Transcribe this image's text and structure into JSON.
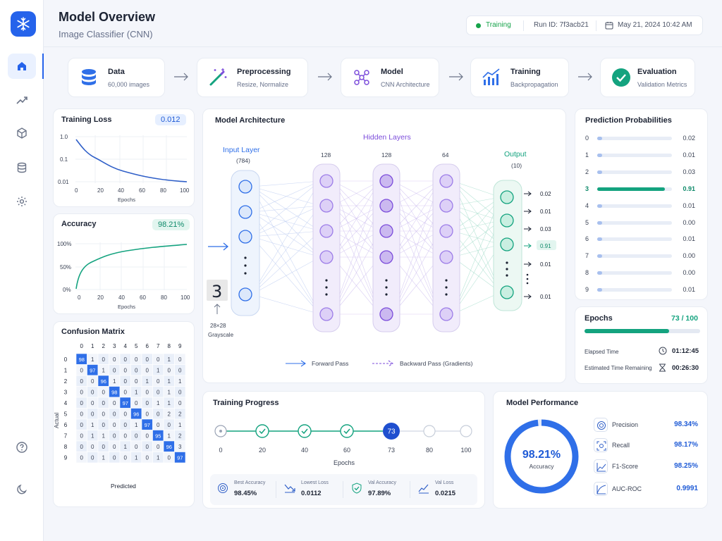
{
  "header": {
    "title": "Model Overview",
    "subtitle": "Image Classifier (CNN)"
  },
  "status": {
    "state": "Training",
    "run_label": "Run ID: 7f3acb21",
    "datetime": "May 21, 2024 10:42 AM",
    "state_color": "#16a34a"
  },
  "sidebar": {
    "items": [
      {
        "name": "home",
        "icon": "home-icon",
        "active": true
      },
      {
        "name": "trends",
        "icon": "trend-icon",
        "active": false
      },
      {
        "name": "models",
        "icon": "cube-icon",
        "active": false
      },
      {
        "name": "datasets",
        "icon": "database-icon",
        "active": false
      },
      {
        "name": "settings",
        "icon": "gear-icon",
        "active": false
      }
    ],
    "help": "help-icon",
    "theme": "moon-icon"
  },
  "pipeline": [
    {
      "title": "Data",
      "subtitle": "60,000 images",
      "icon": "database-icon"
    },
    {
      "title": "Preprocessing",
      "subtitle": "Resize, Normalize",
      "icon": "wand-icon"
    },
    {
      "title": "Model",
      "subtitle": "CNN Architecture",
      "icon": "network-icon"
    },
    {
      "title": "Training",
      "subtitle": "Backpropagation",
      "icon": "bar-trend-icon"
    },
    {
      "title": "Evaluation",
      "subtitle": "Validation Metrics",
      "icon": "check-circle-icon"
    }
  ],
  "training_loss": {
    "title": "Training Loss",
    "value": "0.012",
    "ytick": [
      "1.0",
      "0.1",
      "0.01"
    ],
    "xtick": [
      "0",
      "20",
      "40",
      "60",
      "80",
      "100"
    ],
    "xlabel": "Epochs"
  },
  "accuracy": {
    "title": "Accuracy",
    "value": "98.21%",
    "ytick": [
      "100%",
      "50%",
      "0%"
    ],
    "xtick": [
      "0",
      "20",
      "40",
      "60",
      "80",
      "100"
    ],
    "xlabel": "Epochs"
  },
  "confusion": {
    "title": "Confusion Matrix",
    "ylabel": "Actual",
    "xlabel": "Predicted",
    "labels": [
      "0",
      "1",
      "2",
      "3",
      "4",
      "5",
      "6",
      "7",
      "8",
      "9"
    ],
    "matrix": [
      [
        "98",
        "1",
        "0",
        "0",
        "0",
        "0",
        "0",
        "0",
        "1",
        "0"
      ],
      [
        "0",
        "97",
        "1",
        "0",
        "0",
        "0",
        "0",
        "1",
        "0",
        "0"
      ],
      [
        "0",
        "0",
        "96",
        "1",
        "0",
        "0",
        "1",
        "0",
        "1",
        "1"
      ],
      [
        "0",
        "0",
        "0",
        "98",
        "0",
        "1",
        "0",
        "0",
        "1",
        "0"
      ],
      [
        "0",
        "0",
        "0",
        "0",
        "97",
        "0",
        "0",
        "1",
        "1",
        "0"
      ],
      [
        "0",
        "0",
        "0",
        "0",
        "0",
        "96",
        "0",
        "0",
        "2",
        "2"
      ],
      [
        "0",
        "1",
        "0",
        "0",
        "0",
        "1",
        "97",
        "0",
        "0",
        "1"
      ],
      [
        "0",
        "1",
        "1",
        "0",
        "0",
        "0",
        "0",
        "95",
        "1",
        "2"
      ],
      [
        "0",
        "0",
        "0",
        "0",
        "1",
        "0",
        "0",
        "0",
        "96",
        "3"
      ],
      [
        "0",
        "0",
        "1",
        "0",
        "0",
        "1",
        "0",
        "1",
        "0",
        "97"
      ]
    ]
  },
  "architecture": {
    "title": "Model Architecture",
    "input_title": "Input Layer",
    "input_count": "(784)",
    "hidden_title": "Hidden Layers",
    "hidden_counts": [
      "128",
      "128",
      "64"
    ],
    "output_title": "Output",
    "output_count": "(10)",
    "digit": "3",
    "image_caption_1": "28×28",
    "image_caption_2": "Grayscale",
    "outputs": [
      "0.02",
      "0.01",
      "0.03",
      "0.91",
      "0.01",
      "0.01"
    ],
    "legend_forward": "Forward Pass",
    "legend_backward": "Backward Pass (Gradients)"
  },
  "prediction": {
    "title": "Prediction Probabilities",
    "rows": [
      {
        "label": "0",
        "value": "0.02",
        "p": 0.02
      },
      {
        "label": "1",
        "value": "0.01",
        "p": 0.01
      },
      {
        "label": "2",
        "value": "0.03",
        "p": 0.03
      },
      {
        "label": "3",
        "value": "0.91",
        "p": 0.91
      },
      {
        "label": "4",
        "value": "0.01",
        "p": 0.01
      },
      {
        "label": "5",
        "value": "0.00",
        "p": 0.0
      },
      {
        "label": "6",
        "value": "0.01",
        "p": 0.01
      },
      {
        "label": "7",
        "value": "0.00",
        "p": 0.0
      },
      {
        "label": "8",
        "value": "0.00",
        "p": 0.0
      },
      {
        "label": "9",
        "value": "0.01",
        "p": 0.01
      }
    ],
    "highlight_color": "#14a37f"
  },
  "epochs": {
    "title": "Epochs",
    "value": "73 / 100",
    "progress": 0.73,
    "elapsed_label": "Elapsed Time",
    "elapsed": "01:12:45",
    "remaining_label": "Estimated Time Remaining",
    "remaining": "00:26:30"
  },
  "progress": {
    "title": "Training Progress",
    "steps": [
      "0",
      "20",
      "40",
      "60",
      "73",
      "80",
      "100"
    ],
    "current": "73",
    "xlabel": "Epochs",
    "stats": [
      {
        "label": "Best Accuracy",
        "value": "98.45%",
        "icon": "target-icon"
      },
      {
        "label": "Lowest Loss",
        "value": "0.0112",
        "icon": "trend-down-icon"
      },
      {
        "label": "Val Accuracy",
        "value": "97.89%",
        "icon": "shield-check-icon"
      },
      {
        "label": "Val Loss",
        "value": "0.0215",
        "icon": "chart-line-icon"
      }
    ]
  },
  "performance": {
    "title": "Model Performance",
    "donut_value": "98.21%",
    "donut_label": "Accuracy",
    "donut_fraction": 0.9821,
    "metrics": [
      {
        "label": "Precision",
        "value": "98.34%",
        "icon": "target-icon"
      },
      {
        "label": "Recall",
        "value": "98.17%",
        "icon": "scan-icon"
      },
      {
        "label": "F1-Score",
        "value": "98.25%",
        "icon": "chart-up-icon"
      },
      {
        "label": "AUC-ROC",
        "value": "0.9991",
        "icon": "auc-icon"
      }
    ]
  },
  "colors": {
    "accent": "#2563eb",
    "teal": "#14a37f",
    "purple": "#7c4ddb",
    "green": "#16a34a"
  }
}
